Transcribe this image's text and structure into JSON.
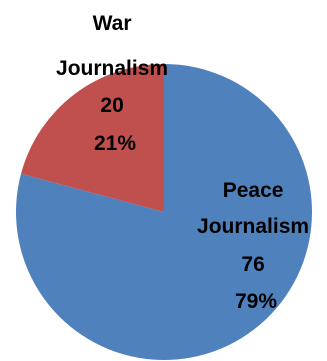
{
  "chart_data": {
    "type": "pie",
    "slices": [
      {
        "label_line1": "Peace",
        "label_line2": "Journalism",
        "value": 76,
        "value_text": "76",
        "percent_text": "79%",
        "color": "#4F81BD"
      },
      {
        "label_line1": "War",
        "label_line2": "Journalism",
        "value": 20,
        "value_text": "20",
        "percent_text": "21%",
        "color": "#C0504D"
      }
    ],
    "start_angle_deg": 0,
    "direction": "clockwise",
    "title": "",
    "legend": "none"
  }
}
